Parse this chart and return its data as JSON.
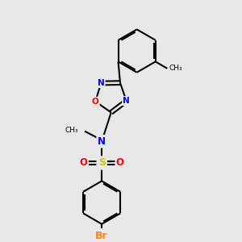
{
  "bg_color": "#e8e8e8",
  "bond_color": "#000000",
  "N_color": "#0000ff",
  "O_color": "#ff0000",
  "S_color": "#cccc00",
  "Br_color": "#ff8800",
  "lw": 1.5,
  "dbo": 0.12,
  "figsize": [
    3.0,
    3.0
  ],
  "dpi": 100,
  "xlim": [
    0,
    10
  ],
  "ylim": [
    0,
    10
  ]
}
